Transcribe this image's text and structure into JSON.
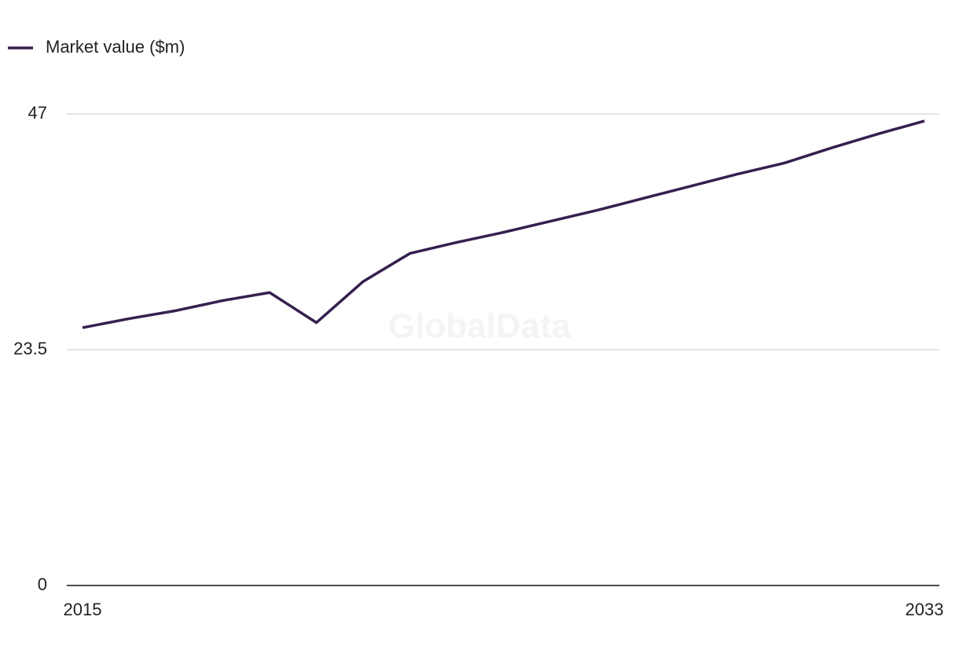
{
  "chart_data": {
    "type": "line",
    "watermark": "GlobalData",
    "x": [
      2015,
      2016,
      2017,
      2018,
      2019,
      2020,
      2021,
      2022,
      2023,
      2024,
      2025,
      2026,
      2027,
      2028,
      2029,
      2030,
      2031,
      2032,
      2033
    ],
    "series": [
      {
        "name": "Market value ($m)",
        "color": "#36204f",
        "values": [
          25.7,
          26.6,
          27.4,
          28.4,
          29.2,
          26.2,
          30.3,
          33.1,
          34.2,
          35.2,
          36.3,
          37.4,
          38.6,
          39.8,
          41.0,
          42.1,
          43.6,
          45.0,
          46.3
        ]
      }
    ],
    "xlim": [
      2015,
      2033
    ],
    "xticks": [
      2015,
      2033
    ],
    "ylim": [
      0,
      47
    ],
    "yticks": [
      0,
      23.5,
      47
    ],
    "grid": true,
    "legend": "top-left"
  }
}
